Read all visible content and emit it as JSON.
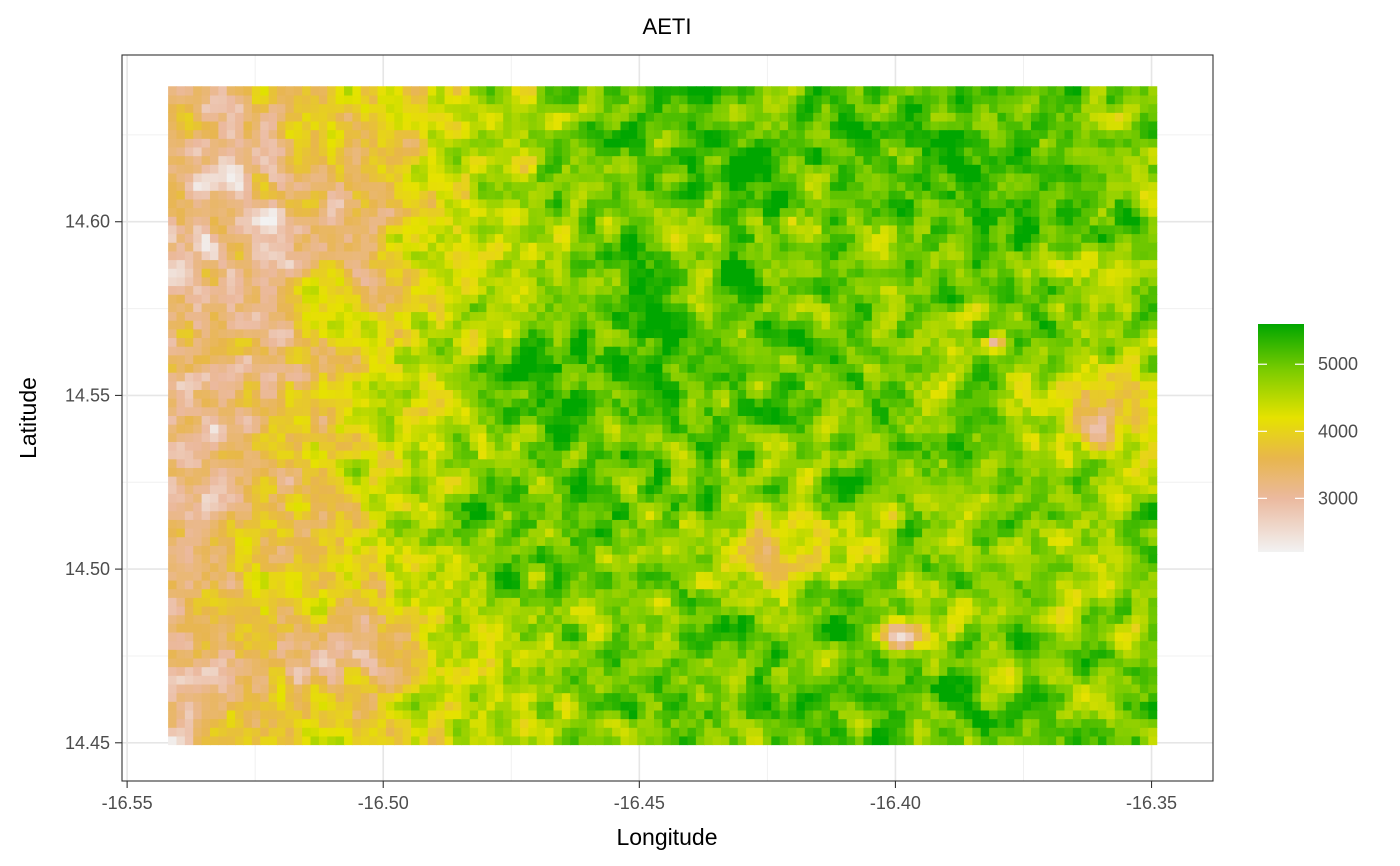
{
  "chart_data": {
    "type": "heatmap",
    "title": "AETI",
    "xlabel": "Longitude",
    "ylabel": "Latitude",
    "xlim": [
      -16.551,
      -16.338
    ],
    "ylim": [
      14.439,
      14.648
    ],
    "raster_extent": {
      "x": [
        -16.542,
        -16.349
      ],
      "y": [
        14.4495,
        14.639
      ]
    },
    "x_ticks": [
      -16.55,
      -16.5,
      -16.45,
      -16.4,
      -16.35
    ],
    "x_tick_labels": [
      "-16.55",
      "-16.50",
      "-16.45",
      "-16.40",
      "-16.35"
    ],
    "y_ticks": [
      14.45,
      14.5,
      14.55,
      14.6
    ],
    "y_tick_labels": [
      "14.45",
      "14.50",
      "14.55",
      "14.60"
    ],
    "grid": true,
    "grid_rows": 76,
    "grid_cols": 118,
    "color_scale": {
      "min": 2200,
      "max": 5600,
      "stops": [
        {
          "value": 2200,
          "color": "#f2f2f2"
        },
        {
          "value": 3000,
          "color": "#ebb99e"
        },
        {
          "value": 3600,
          "color": "#e8b64c"
        },
        {
          "value": 4200,
          "color": "#e6e200"
        },
        {
          "value": 4900,
          "color": "#7dcc00"
        },
        {
          "value": 5600,
          "color": "#00a600"
        }
      ]
    },
    "legend": {
      "position": "right",
      "ticks": [
        3000,
        4000,
        5000
      ],
      "tick_labels": [
        "3000",
        "4000",
        "5000"
      ]
    },
    "hotspots": [
      {
        "lon": -16.465,
        "lat": 14.552,
        "value": 5400,
        "radius": 0.018
      },
      {
        "lon": -16.448,
        "lat": 14.568,
        "value": 5500,
        "radius": 0.01
      },
      {
        "lon": -16.435,
        "lat": 14.617,
        "value": 5200,
        "radius": 0.014
      },
      {
        "lon": -16.387,
        "lat": 14.622,
        "value": 5450,
        "radius": 0.014
      },
      {
        "lon": -16.373,
        "lat": 14.598,
        "value": 5250,
        "radius": 0.013
      },
      {
        "lon": -16.475,
        "lat": 14.515,
        "value": 5100,
        "radius": 0.016
      },
      {
        "lon": -16.47,
        "lat": 14.493,
        "value": 5000,
        "radius": 0.011
      },
      {
        "lon": -16.415,
        "lat": 14.51,
        "value": 4900,
        "radius": 0.012
      },
      {
        "lon": -16.4,
        "lat": 14.46,
        "value": 4950,
        "radius": 0.012
      },
      {
        "lon": -16.36,
        "lat": 14.495,
        "value": 4850,
        "radius": 0.012
      },
      {
        "lon": -16.528,
        "lat": 14.6,
        "value": 3000,
        "radius": 0.026
      },
      {
        "lon": -16.535,
        "lat": 14.535,
        "value": 3150,
        "radius": 0.016
      },
      {
        "lon": -16.51,
        "lat": 14.478,
        "value": 3200,
        "radius": 0.012
      },
      {
        "lon": -16.425,
        "lat": 14.505,
        "value": 3700,
        "radius": 0.012
      },
      {
        "lon": -16.36,
        "lat": 14.545,
        "value": 3650,
        "radius": 0.014
      },
      {
        "lon": -16.399,
        "lat": 14.481,
        "value": 2300,
        "radius": 0.004
      },
      {
        "lon": -16.381,
        "lat": 14.565,
        "value": 3000,
        "radius": 0.002
      }
    ]
  }
}
